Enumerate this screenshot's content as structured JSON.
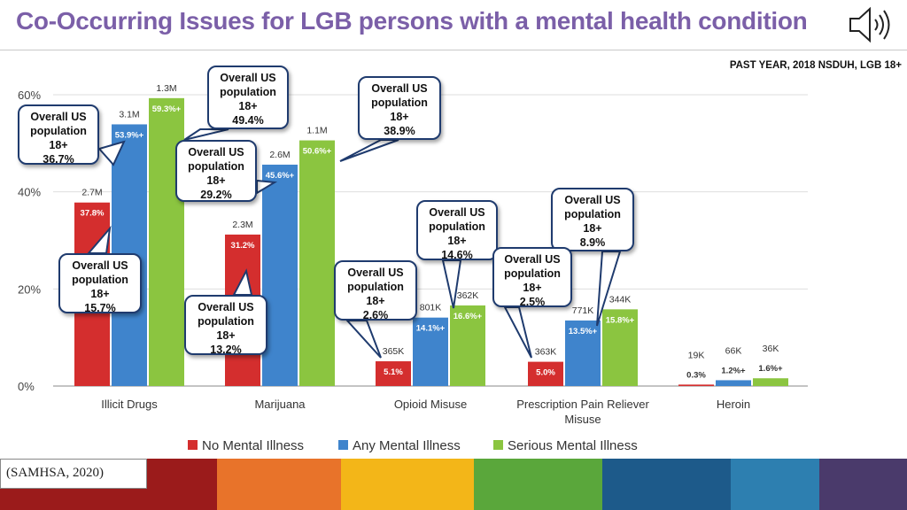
{
  "title": "Co-Occurring Issues for LGB persons with a mental health condition",
  "subtitle": "PAST YEAR, 2018 NSDUH, LGB 18+",
  "citation": "(SAMHSA, 2020)",
  "colors": {
    "no_mental_illness": "#d42e2e",
    "any_mental_illness": "#3f84cc",
    "serious_mental_illness": "#8bc540",
    "title": "#7b5fa8",
    "callout_border": "#1f3b6e",
    "footer": [
      "#9b1b1b",
      "#e8732a",
      "#f3b618",
      "#5aa73b",
      "#1d5a8a",
      "#2d7fb0",
      "#4a3a6b"
    ]
  },
  "chart_data": {
    "type": "bar",
    "categories": [
      "Illicit Drugs",
      "Marijuana",
      "Opioid Misuse",
      "Prescription Pain Reliever Misuse",
      "Heroin"
    ],
    "category_lines": [
      [
        "Illicit Drugs"
      ],
      [
        "Marijuana"
      ],
      [
        "Opioid Misuse"
      ],
      [
        "Prescription Pain Reliever",
        "Misuse"
      ],
      [
        "Heroin"
      ]
    ],
    "series": [
      {
        "name": "No Mental Illness",
        "values": [
          37.8,
          31.2,
          5.1,
          5.0,
          0.3
        ],
        "value_labels": [
          "37.8%",
          "31.2%",
          "5.1%",
          "5.0%",
          "0.3%"
        ],
        "count_labels": [
          "2.7M",
          "2.3M",
          "365K",
          "363K",
          "19K"
        ]
      },
      {
        "name": "Any Mental Illness",
        "values": [
          53.9,
          45.6,
          14.1,
          13.5,
          1.2
        ],
        "value_labels": [
          "53.9%+",
          "45.6%+",
          "14.1%+",
          "13.5%+",
          "1.2%+"
        ],
        "count_labels": [
          "3.1M",
          "2.6M",
          "801K",
          "771K",
          "66K"
        ]
      },
      {
        "name": "Serious Mental Illness",
        "values": [
          59.3,
          50.6,
          16.6,
          15.8,
          1.6
        ],
        "value_labels": [
          "59.3%+",
          "50.6%+",
          "16.6%+",
          "15.8%+",
          "1.6%+"
        ],
        "count_labels": [
          "1.3M",
          "1.1M",
          "362K",
          "344K",
          "36K"
        ]
      }
    ],
    "y_ticks": [
      0,
      20,
      40,
      60
    ],
    "y_tick_labels": [
      "0%",
      "20%",
      "40%",
      "60%"
    ],
    "ylim": [
      0,
      60
    ],
    "legend": "bottom",
    "annotations": [
      {
        "lines": [
          "Overall US",
          "population",
          "18+",
          "36.7%"
        ],
        "value": 36.7,
        "category": "Illicit Drugs"
      },
      {
        "lines": [
          "Overall US",
          "population",
          "18+",
          "49.4%"
        ],
        "value": 49.4,
        "category": "Illicit Drugs"
      },
      {
        "lines": [
          "Overall US",
          "population",
          "18+",
          "15.7%"
        ],
        "value": 15.7,
        "category": "Illicit Drugs"
      },
      {
        "lines": [
          "Overall US",
          "population",
          "18+",
          "29.2%"
        ],
        "value": 29.2,
        "category": "Marijuana"
      },
      {
        "lines": [
          "Overall US",
          "population",
          "18+",
          "38.9%"
        ],
        "value": 38.9,
        "category": "Marijuana"
      },
      {
        "lines": [
          "Overall US",
          "population",
          "18+",
          "13.2%"
        ],
        "value": 13.2,
        "category": "Marijuana"
      },
      {
        "lines": [
          "Overall US",
          "population",
          "18+",
          "14.6%"
        ],
        "value": 14.6,
        "category": "Opioid Misuse"
      },
      {
        "lines": [
          "Overall US",
          "population",
          "18+",
          "2.6%"
        ],
        "value": 2.6,
        "category": "Opioid Misuse"
      },
      {
        "lines": [
          "Overall US",
          "population",
          "18+",
          "8.9%"
        ],
        "value": 8.9,
        "category": "Prescription Pain Reliever Misuse"
      },
      {
        "lines": [
          "Overall US",
          "population",
          "18+",
          "2.5%"
        ],
        "value": 2.5,
        "category": "Prescription Pain Reliever Misuse"
      }
    ]
  }
}
